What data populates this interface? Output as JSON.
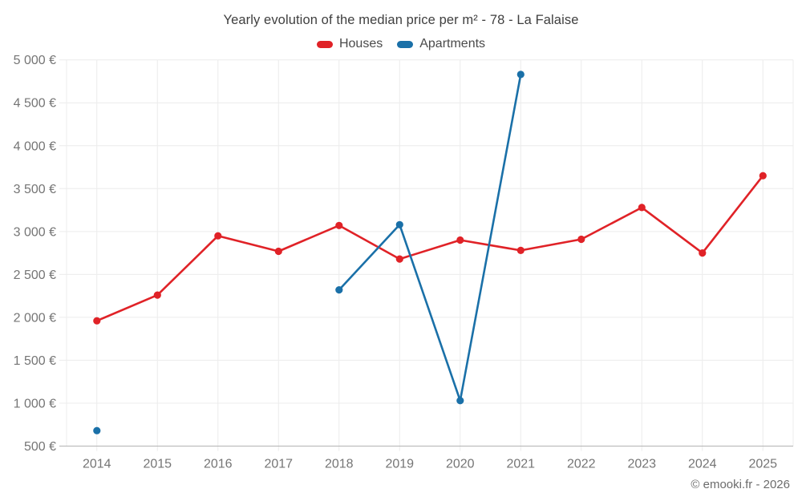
{
  "chart": {
    "title": "Yearly evolution of the median price per m² - 78 - La Falaise",
    "copyright": "© emooki.fr - 2026",
    "legend": [
      {
        "id": "houses",
        "label": "Houses",
        "color": "#e02227"
      },
      {
        "id": "apartments",
        "label": "Apartments",
        "color": "#1a70a8"
      }
    ]
  },
  "chart_data": {
    "type": "line",
    "title": "Yearly evolution of the median price per m² - 78 - La Falaise",
    "categories": [
      "2014",
      "2015",
      "2016",
      "2017",
      "2018",
      "2019",
      "2020",
      "2021",
      "2022",
      "2023",
      "2024",
      "2025"
    ],
    "series": [
      {
        "name": "Houses",
        "color": "#e02227",
        "values": [
          1960,
          2260,
          2950,
          2770,
          3070,
          2680,
          2900,
          2780,
          2910,
          3280,
          2750,
          3650
        ]
      },
      {
        "name": "Apartments",
        "color": "#1a70a8",
        "values": [
          680,
          null,
          null,
          null,
          2320,
          3080,
          1030,
          4830,
          null,
          null,
          null,
          null
        ]
      }
    ],
    "xlabel": "",
    "ylabel": "",
    "ylim": [
      500,
      5000
    ],
    "ytick_step": 500,
    "ytick_labels": [
      "500 €",
      "1 000 €",
      "1 500 €",
      "2 000 €",
      "2 500 €",
      "3 000 €",
      "3 500 €",
      "4 000 €",
      "4 500 €",
      "5 000 €"
    ],
    "grid": true,
    "legend_position": "top",
    "marker": "circle"
  }
}
